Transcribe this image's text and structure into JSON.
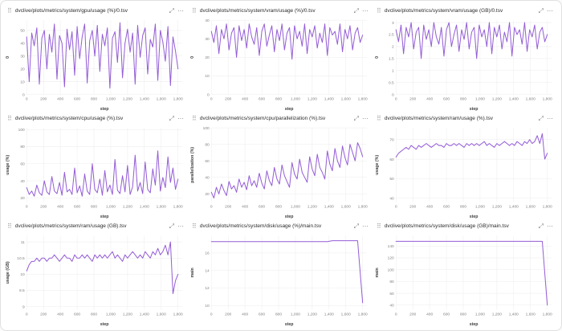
{
  "accent_color": "#945dd6",
  "grid_color": "#ececec",
  "icons": {
    "drag": "⠿",
    "expand": "⤢",
    "menu": "⋯"
  },
  "chart_data": [
    {
      "type": "line",
      "title": "dvclive/plots/metrics/system/gpu/usage (%)/0.tsv",
      "xlabel": "step",
      "ylabel": "0",
      "xlim": [
        0,
        1850
      ],
      "xticks": [
        0,
        200,
        400,
        600,
        800,
        1000,
        1200,
        1400,
        1600,
        1800
      ],
      "ylim": [
        0,
        58
      ],
      "yticks": [
        0,
        10,
        20,
        30,
        40,
        50
      ],
      "x_step": 30,
      "values": [
        45,
        10,
        48,
        38,
        52,
        8,
        44,
        50,
        20,
        47,
        33,
        55,
        12,
        46,
        40,
        6,
        51,
        35,
        49,
        15,
        53,
        28,
        45,
        55,
        9,
        42,
        50,
        30,
        54,
        18,
        47,
        38,
        52,
        5,
        44,
        49,
        25,
        56,
        13,
        40,
        51,
        33,
        48,
        8,
        54,
        29,
        46,
        52,
        16,
        43,
        37,
        55,
        11,
        50,
        41,
        26,
        53,
        7,
        45,
        34,
        20
      ]
    },
    {
      "type": "line",
      "title": "dvclive/plots/metrics/system/vram/usage (%)/0.tsv",
      "xlabel": "step",
      "ylabel": "0",
      "xlim": [
        0,
        1850
      ],
      "xticks": [
        0,
        200,
        400,
        600,
        800,
        1000,
        1200,
        1400,
        1600,
        1800
      ],
      "ylim": [
        0,
        40
      ],
      "yticks": [
        0,
        10,
        20,
        30,
        40
      ],
      "x_step": 30,
      "values": [
        34,
        28,
        37,
        22,
        35,
        30,
        38,
        24,
        33,
        36,
        20,
        37,
        29,
        35,
        25,
        38,
        31,
        27,
        36,
        21,
        34,
        38,
        26,
        32,
        37,
        23,
        35,
        29,
        38,
        24,
        33,
        36,
        19,
        37,
        30,
        34,
        26,
        38,
        22,
        35,
        31,
        37,
        25,
        33,
        28,
        38,
        21,
        36,
        32,
        34,
        27,
        38,
        23,
        35,
        30,
        37,
        24,
        33,
        36,
        28,
        32
      ]
    },
    {
      "type": "line",
      "title": "dvclive/plots/metrics/system/vram/usage (GB)/0.tsv",
      "xlabel": "step",
      "ylabel": "0",
      "xlim": [
        0,
        1850
      ],
      "xticks": [
        0,
        200,
        400,
        600,
        800,
        1000,
        1200,
        1400,
        1600,
        1800
      ],
      "ylim": [
        0,
        3.1
      ],
      "yticks": [
        0,
        0.5,
        1,
        1.5,
        2,
        2.5,
        3
      ],
      "x_step": 30,
      "values": [
        2.7,
        2.2,
        2.9,
        1.7,
        2.8,
        2.4,
        3,
        1.9,
        2.6,
        2.8,
        1.5,
        2.9,
        2.3,
        2.7,
        2,
        3,
        2.4,
        2.1,
        2.8,
        1.6,
        2.7,
        3,
        2,
        2.5,
        2.9,
        1.8,
        2.7,
        2.3,
        3,
        1.9,
        2.6,
        2.8,
        1.5,
        2.9,
        2.4,
        2.7,
        2,
        3,
        1.7,
        2.8,
        2.4,
        2.9,
        1.9,
        2.6,
        2.2,
        3,
        1.6,
        2.8,
        2.5,
        2.7,
        2.1,
        3,
        1.8,
        2.7,
        2.4,
        2.9,
        1.9,
        2.6,
        2.8,
        2.2,
        2.5
      ]
    },
    {
      "type": "line",
      "title": "dvclive/plots/metrics/system/cpu/usage (%).tsv",
      "xlabel": "step",
      "ylabel": "usage (%)",
      "xlim": [
        0,
        1850
      ],
      "xticks": [
        0,
        200,
        400,
        600,
        800,
        1000,
        1200,
        1400,
        1600,
        1800
      ],
      "ylim": [
        15,
        102
      ],
      "yticks": [
        20,
        40,
        60,
        80,
        100
      ],
      "x_step": 30,
      "values": [
        32,
        24,
        28,
        22,
        35,
        26,
        23,
        40,
        27,
        24,
        45,
        28,
        25,
        38,
        23,
        50,
        27,
        30,
        24,
        55,
        26,
        34,
        22,
        48,
        28,
        24,
        60,
        30,
        26,
        42,
        23,
        52,
        27,
        35,
        24,
        65,
        29,
        25,
        46,
        27,
        58,
        24,
        33,
        70,
        28,
        38,
        25,
        62,
        30,
        26,
        54,
        35,
        75,
        28,
        44,
        32,
        68,
        38,
        55,
        30,
        42
      ]
    },
    {
      "type": "line",
      "title": "dvclive/plots/metrics/system/cpu/parallelization (%).tsv",
      "xlabel": "step",
      "ylabel": "parallelization (%)",
      "xlim": [
        0,
        1850
      ],
      "xticks": [
        0,
        200,
        400,
        600,
        800,
        1000,
        1200,
        1400,
        1600,
        1800
      ],
      "ylim": [
        10,
        100
      ],
      "yticks": [
        20,
        40,
        60,
        80,
        100
      ],
      "x_step": 30,
      "values": [
        22,
        15,
        28,
        20,
        32,
        24,
        18,
        35,
        26,
        30,
        22,
        38,
        28,
        34,
        25,
        42,
        30,
        36,
        28,
        45,
        33,
        26,
        48,
        36,
        30,
        52,
        38,
        32,
        55,
        42,
        35,
        28,
        58,
        44,
        38,
        62,
        46,
        40,
        34,
        65,
        50,
        42,
        68,
        52,
        46,
        38,
        72,
        56,
        48,
        75,
        60,
        52,
        78,
        64,
        55,
        80,
        70,
        60,
        82,
        75,
        65
      ]
    },
    {
      "type": "line",
      "title": "dvclive/plots/metrics/system/ram/usage (%).tsv",
      "xlabel": "step",
      "ylabel": "usage (%)",
      "xlim": [
        0,
        1850
      ],
      "xticks": [
        0,
        200,
        400,
        600,
        800,
        1000,
        1200,
        1400,
        1600,
        1800
      ],
      "ylim": [
        38,
        76
      ],
      "yticks": [
        40,
        50,
        60,
        70
      ],
      "x_step": 30,
      "values": [
        61,
        63,
        64,
        65,
        66,
        65,
        67,
        66,
        65,
        67,
        66,
        67,
        68,
        67,
        66,
        67,
        68,
        67,
        67,
        66,
        68,
        67,
        67,
        68,
        67,
        68,
        67,
        66,
        68,
        67,
        68,
        67,
        68,
        67,
        68,
        69,
        67,
        68,
        67,
        66,
        68,
        67,
        68,
        69,
        68,
        67,
        68,
        67,
        69,
        68,
        67,
        69,
        68,
        70,
        68,
        69,
        72,
        68,
        73,
        60,
        63
      ]
    },
    {
      "type": "line",
      "title": "dvclive/plots/metrics/system/ram/usage (GB).tsv",
      "xlabel": "step",
      "ylabel": "usage (GB)",
      "xlim": [
        0,
        1850
      ],
      "xticks": [
        0,
        200,
        400,
        600,
        800,
        1000,
        1200,
        1400,
        1600,
        1800
      ],
      "ylim": [
        8.9,
        11.2
      ],
      "yticks": [
        9,
        9.5,
        10,
        10.5,
        11
      ],
      "x_step": 30,
      "values": [
        10.1,
        10.3,
        10.4,
        10.4,
        10.5,
        10.4,
        10.5,
        10.5,
        10.4,
        10.5,
        10.5,
        10.6,
        10.5,
        10.4,
        10.5,
        10.6,
        10.5,
        10.5,
        10.4,
        10.6,
        10.5,
        10.5,
        10.6,
        10.5,
        10.6,
        10.5,
        10.4,
        10.6,
        10.5,
        10.6,
        10.5,
        10.6,
        10.5,
        10.6,
        10.7,
        10.5,
        10.6,
        10.5,
        10.4,
        10.6,
        10.5,
        10.6,
        10.7,
        10.6,
        10.5,
        10.6,
        10.5,
        10.7,
        10.6,
        10.5,
        10.7,
        10.6,
        10.8,
        10.6,
        10.7,
        10.9,
        10.6,
        11,
        9.4,
        9.8,
        10
      ]
    },
    {
      "type": "line",
      "title": "dvclive/plots/metrics/system/disk/usage (%)/main.tsv",
      "xlabel": "step",
      "ylabel": "main",
      "xlim": [
        0,
        1850
      ],
      "xticks": [
        0,
        200,
        400,
        600,
        800,
        1000,
        1200,
        1400,
        1600,
        1800
      ],
      "ylim": [
        9.5,
        18
      ],
      "yticks": [
        10,
        12,
        14,
        16
      ],
      "x_step": 60,
      "values": [
        17.3,
        17.3,
        17.3,
        17.3,
        17.3,
        17.3,
        17.3,
        17.3,
        17.3,
        17.3,
        17.3,
        17.3,
        17.3,
        17.3,
        17.3,
        17.3,
        17.3,
        17.3,
        17.3,
        17.3,
        17.3,
        17.3,
        17.3,
        17.3,
        17.4,
        17.4,
        17.4,
        17.4,
        17.4,
        17.4,
        10.3
      ]
    },
    {
      "type": "line",
      "title": "dvclive/plots/metrics/system/disk/usage (GB)/main.tsv",
      "xlabel": "step",
      "ylabel": "main",
      "xlim": [
        0,
        1850
      ],
      "xticks": [
        0,
        200,
        400,
        600,
        800,
        1000,
        1200,
        1400,
        1600,
        1800
      ],
      "ylim": [
        32,
        158
      ],
      "yticks": [
        40,
        60,
        80,
        100,
        120,
        140
      ],
      "x_step": 60,
      "values": [
        148,
        148,
        148,
        148,
        148,
        148,
        148,
        148,
        148,
        148,
        148,
        148,
        148,
        148,
        148,
        148,
        148,
        148,
        148,
        148,
        148,
        148,
        148,
        148,
        148,
        148,
        148,
        148,
        148,
        148,
        40
      ]
    }
  ]
}
